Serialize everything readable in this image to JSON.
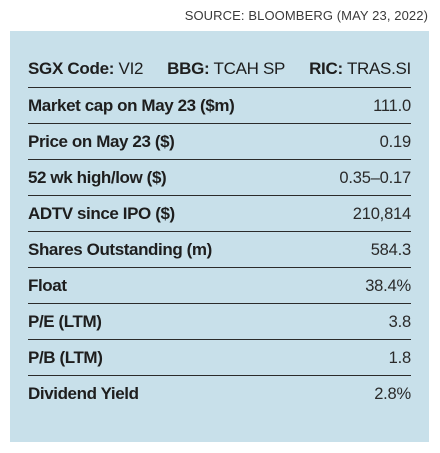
{
  "source": "SOURCE: BLOOMBERG (MAY 23, 2022)",
  "codes": {
    "sgx_label": "SGX Code:",
    "sgx_value": "VI2",
    "bbg_label": "BBG:",
    "bbg_value": "TCAH SP",
    "ric_label": "RIC:",
    "ric_value": "TRAS.SI"
  },
  "rows": [
    {
      "label": "Market cap on May 23 ($m)",
      "value": "111.0"
    },
    {
      "label": "Price on May 23 ($)",
      "value": "0.19"
    },
    {
      "label": "52 wk high/low ($)",
      "value": "0.35–0.17"
    },
    {
      "label": "ADTV since IPO ($)",
      "value": "210,814"
    },
    {
      "label": "Shares Outstanding (m)",
      "value": "584.3"
    },
    {
      "label": "Float",
      "value": "38.4%"
    },
    {
      "label": "P/E (LTM)",
      "value": "3.8"
    },
    {
      "label": "P/B (LTM)",
      "value": "1.8"
    },
    {
      "label": "Dividend Yield",
      "value": "2.8%"
    }
  ]
}
